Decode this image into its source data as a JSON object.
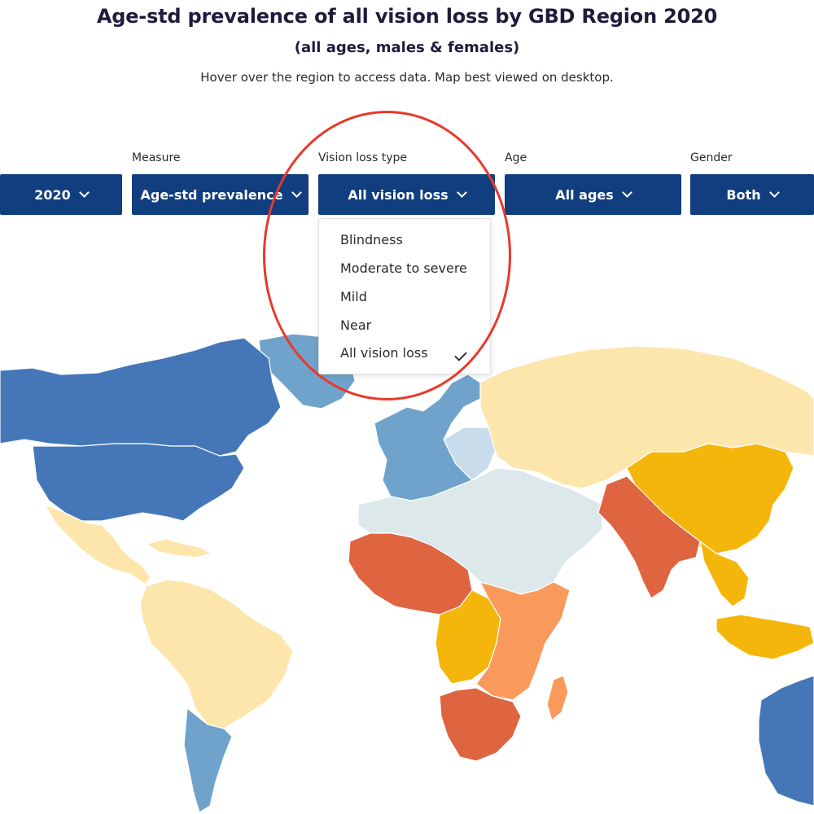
{
  "header": {
    "title": "Age-std prevalence of all vision loss by GBD Region 2020",
    "subtitle": "(all ages, males & females)",
    "hint": "Hover over the region to access data. Map best viewed on desktop."
  },
  "filters": {
    "year": {
      "label": "",
      "value": "2020"
    },
    "measure": {
      "label": "Measure",
      "value": "Age-std prevalence"
    },
    "vision_loss_type": {
      "label": "Vision loss type",
      "value": "All vision loss"
    },
    "age": {
      "label": "Age",
      "value": "All ages"
    },
    "gender": {
      "label": "Gender",
      "value": "Both"
    }
  },
  "dropdown": {
    "options": [
      "Blindness",
      "Moderate to severe",
      "Mild",
      "Near",
      "All vision loss"
    ],
    "selected": "All vision loss"
  },
  "colors": {
    "button_bg": "#113e7e",
    "highlight": "#e8392a",
    "dark_blue": "#4577b8",
    "mid_blue": "#6fa3cc",
    "light_blue": "#c9dcec",
    "pale_gray": "#dde8eb",
    "cream": "#fde6ac",
    "gold": "#f5b60c",
    "light_orange": "#f99a5c",
    "orange_red": "#df6440"
  }
}
